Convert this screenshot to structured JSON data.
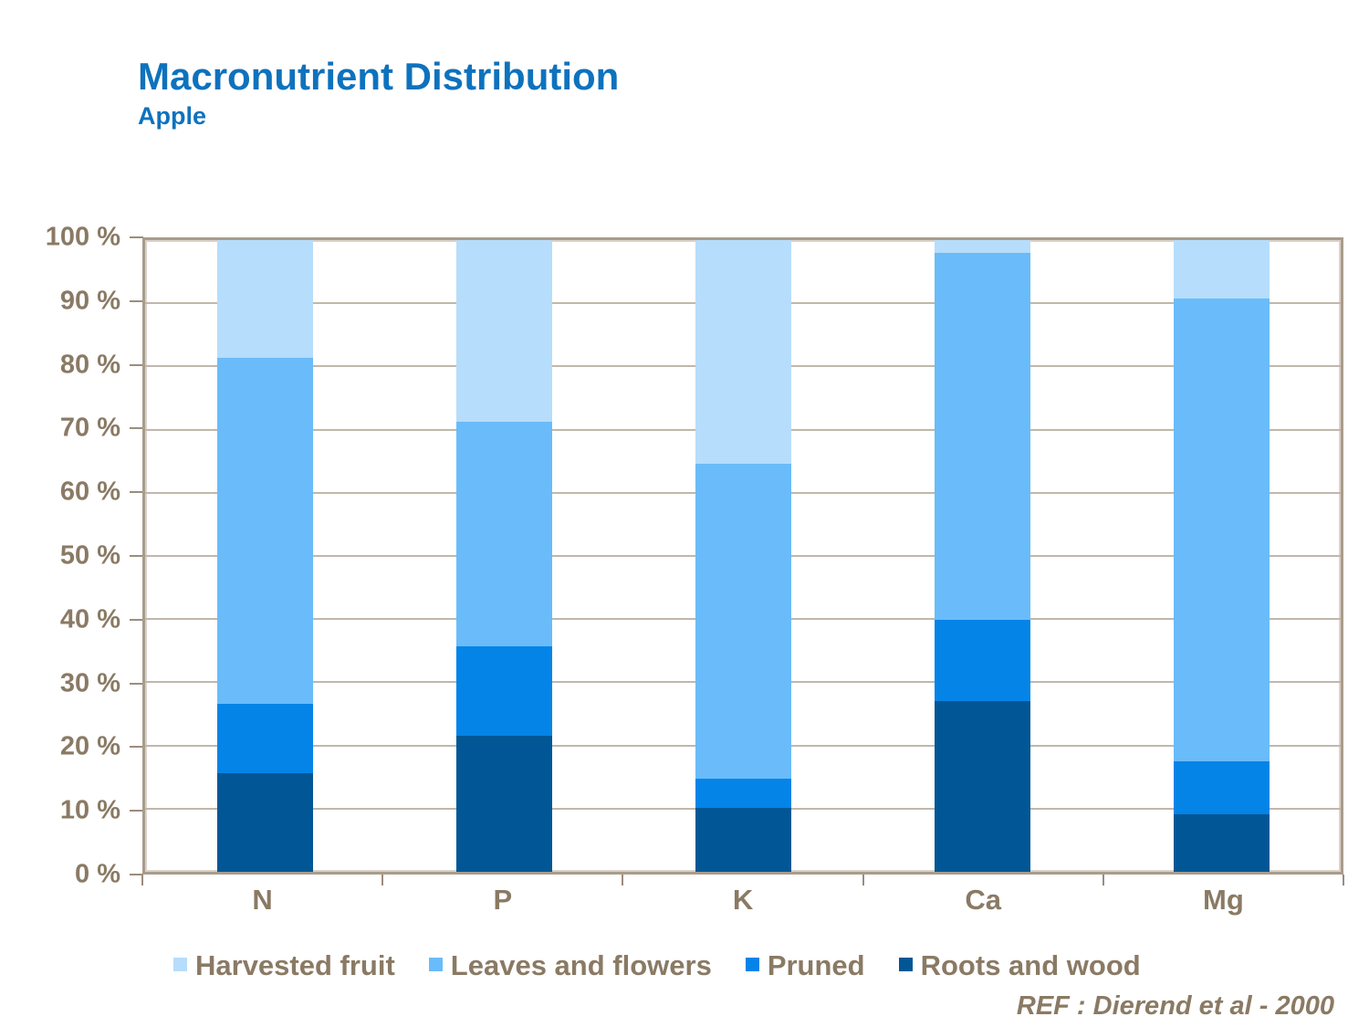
{
  "chart_data": {
    "type": "bar",
    "subtype": "stacked-percent",
    "title": "Macronutrient Distribution",
    "subtitle": "Apple",
    "categories": [
      "N",
      "P",
      "K",
      "Ca",
      "Mg"
    ],
    "series": [
      {
        "name": "Harvested fruit",
        "color": "#b6ddfb",
        "values": [
          18.7,
          28.8,
          35.4,
          2.0,
          9.2
        ]
      },
      {
        "name": "Leaves and flowers",
        "color": "#69bcf9",
        "values": [
          54.7,
          35.5,
          49.8,
          58.1,
          73.3
        ]
      },
      {
        "name": "Pruned",
        "color": "#0484e7",
        "values": [
          11.0,
          14.1,
          4.7,
          12.9,
          8.4
        ]
      },
      {
        "name": "Roots and wood",
        "color": "#015795",
        "values": [
          15.6,
          21.6,
          10.1,
          27.0,
          9.1
        ]
      }
    ],
    "ylim": [
      0,
      100
    ],
    "ytick_step": 10,
    "ytick_labels": [
      "0 %",
      "10 %",
      "20 %",
      "30 %",
      "40 %",
      "50 %",
      "60 %",
      "70 %",
      "80 %",
      "90 %",
      "100 %"
    ],
    "xlabel": "",
    "ylabel": "",
    "grid": true,
    "legend_position": "bottom",
    "colors": {
      "title": "#0e72bd",
      "axis_text": "#8a7a64",
      "gridline": "#c1b7aa",
      "axis_tick": "#9b8d7c",
      "plot_border": "#a89c8e",
      "plot_border_highlight": "#dbd2c6",
      "background": "#ffffff"
    }
  },
  "footer": {
    "ref_note": "REF :  Dierend et al - 2000"
  }
}
